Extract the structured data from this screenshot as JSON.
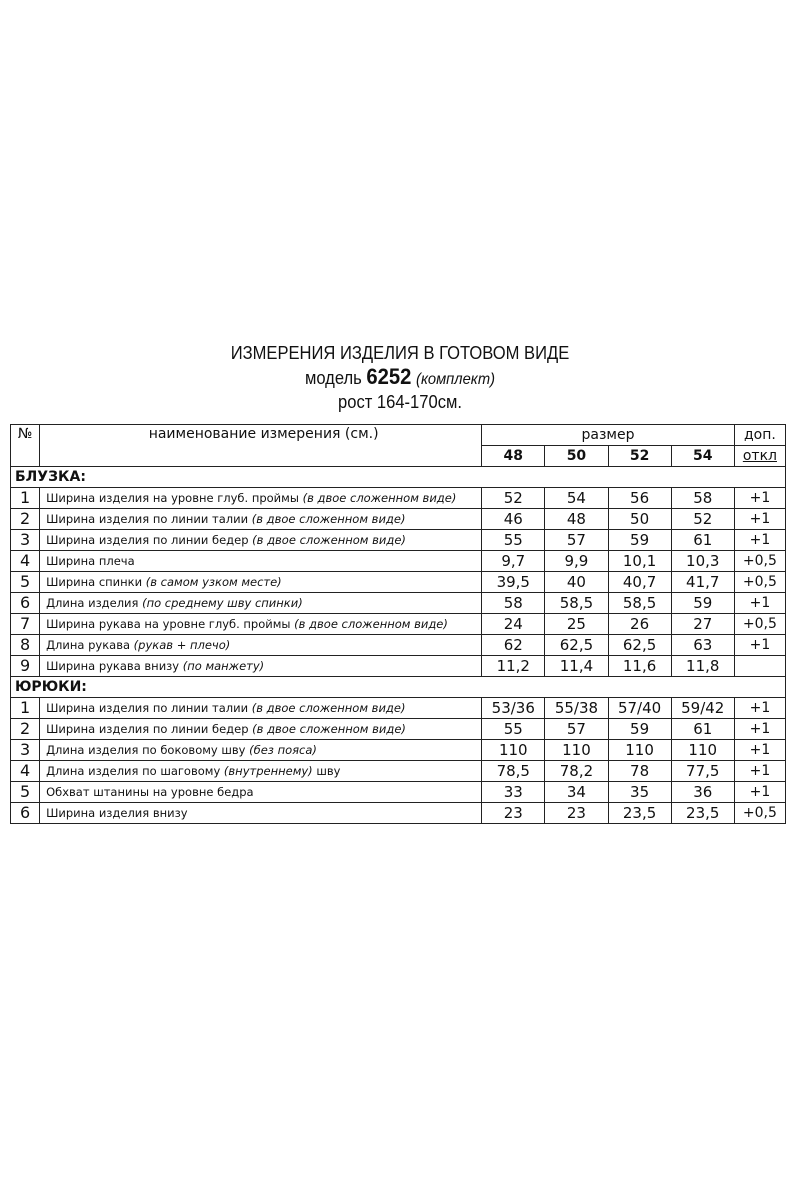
{
  "title": {
    "line1": "ИЗМЕРЕНИЯ ИЗДЕЛИЯ В ГОТОВОМ ВИДЕ",
    "model_prefix": "модель",
    "model_number": "6252",
    "model_suffix": "(комплект)",
    "height": "рост 164-170см."
  },
  "table": {
    "headers": {
      "number": "№",
      "name": "наименование измерения (см.)",
      "size": "размер",
      "sizes": [
        "48",
        "50",
        "52",
        "54"
      ],
      "tolerance_top": "доп.",
      "tolerance_bottom": "откл"
    },
    "sections": [
      {
        "title": "БЛУЗКА:",
        "rows": [
          {
            "n": "1",
            "name": "Ширина изделия на уровне глуб. проймы ",
            "note": "(в двое сложенном виде)",
            "values": [
              "52",
              "54",
              "56",
              "58"
            ],
            "tol": "+1"
          },
          {
            "n": "2",
            "name": "Ширина изделия по линии талии ",
            "note": "(в двое сложенном виде)",
            "values": [
              "46",
              "48",
              "50",
              "52"
            ],
            "tol": "+1"
          },
          {
            "n": "3",
            "name": "Ширина изделия по линии бедер ",
            "note": "(в двое сложенном виде)",
            "values": [
              "55",
              "57",
              "59",
              "61"
            ],
            "tol": "+1"
          },
          {
            "n": "4",
            "name": "Ширина плеча",
            "note": "",
            "values": [
              "9,7",
              "9,9",
              "10,1",
              "10,3"
            ],
            "tol": "+0,5"
          },
          {
            "n": "5",
            "name": "Ширина спинки ",
            "note": "(в самом узком месте)",
            "values": [
              "39,5",
              "40",
              "40,7",
              "41,7"
            ],
            "tol": "+0,5"
          },
          {
            "n": "6",
            "name": "Длина изделия ",
            "note": "(по среднему шву спинки)",
            "values": [
              "58",
              "58,5",
              "58,5",
              "59"
            ],
            "tol": "+1"
          },
          {
            "n": "7",
            "name": "Ширина рукава на уровне глуб. проймы ",
            "note": "(в двое сложенном виде)",
            "values": [
              "24",
              "25",
              "26",
              "27"
            ],
            "tol": "+0,5"
          },
          {
            "n": "8",
            "name": "Длина рукава ",
            "note": "(рукав + плечо)",
            "values": [
              "62",
              "62,5",
              "62,5",
              "63"
            ],
            "tol": "+1"
          },
          {
            "n": "9",
            "name": "Ширина рукава внизу ",
            "note": "(по манжету)",
            "values": [
              "11,2",
              "11,4",
              "11,6",
              "11,8"
            ],
            "tol": ""
          }
        ]
      },
      {
        "title": "ЮРЮКИ:",
        "rows": [
          {
            "n": "1",
            "name": "Ширина изделия по линии талии ",
            "note": "(в двое сложенном виде)",
            "values": [
              "53/36",
              "55/38",
              "57/40",
              "59/42"
            ],
            "tol": "+1"
          },
          {
            "n": "2",
            "name": "Ширина изделия по линии бедер ",
            "note": "(в двое сложенном виде)",
            "values": [
              "55",
              "57",
              "59",
              "61"
            ],
            "tol": "+1"
          },
          {
            "n": "3",
            "name": "Длина изделия по боковому шву ",
            "note": "(без пояса)",
            "values": [
              "110",
              "110",
              "110",
              "110"
            ],
            "tol": "+1"
          },
          {
            "n": "4",
            "name": "Длина изделия по шаговому ",
            "note": "(внутреннему)",
            "name_tail": " шву",
            "values": [
              "78,5",
              "78,2",
              "78",
              "77,5"
            ],
            "tol": "+1"
          },
          {
            "n": "5",
            "name": "Обхват штанины на уровне бедра",
            "note": "",
            "values": [
              "33",
              "34",
              "35",
              "36"
            ],
            "tol": "+1"
          },
          {
            "n": "6",
            "name": "Ширина изделия внизу",
            "note": "",
            "values": [
              "23",
              "23",
              "23,5",
              "23,5"
            ],
            "tol": "+0,5"
          }
        ]
      }
    ]
  }
}
